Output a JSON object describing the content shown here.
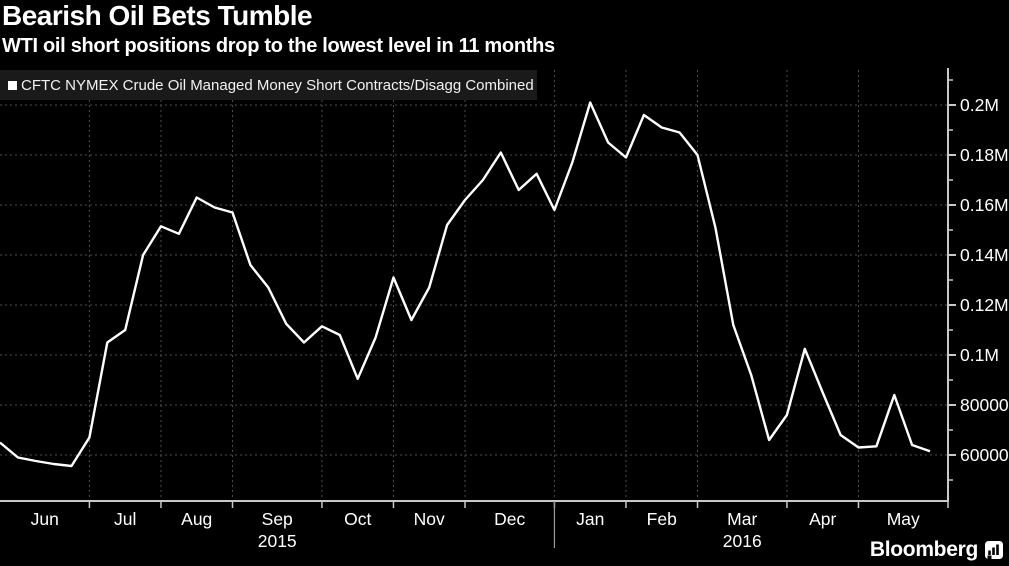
{
  "header": {
    "title": "Bearish Oil Bets Tumble",
    "subtitle": "WTI oil short positions drop to the lowest level in 11 months"
  },
  "legend": {
    "label": "CFTC NYMEX Crude Oil Managed Money Short Contracts/Disagg Combined",
    "swatch_color": "#ffffff"
  },
  "footer": {
    "brand": "Bloomberg"
  },
  "colors": {
    "background": "#000000",
    "line": "#ffffff",
    "axis": "#c8c8c8",
    "grid": "#4d4d4d",
    "legend_bg": "#1a1a1a",
    "text": "#ffffff"
  },
  "chart_data": {
    "type": "line",
    "title": "Bearish Oil Bets Tumble",
    "subtitle": "WTI oil short positions drop to the lowest level in 11 months",
    "grid": true,
    "legend_position": "top-left",
    "axis_side": "right",
    "x_unit": "weekly observations, Jun 2015 - mid May 2016",
    "ylim": [
      41600,
      214000
    ],
    "series": [
      {
        "name": "CFTC NYMEX Crude Oil Managed Money Short Contracts/Disagg Combined",
        "frequency": "weekly",
        "values": [
          65000,
          59000,
          57600,
          56400,
          55600,
          67000,
          105000,
          110000,
          140000,
          151500,
          148500,
          163000,
          159000,
          157000,
          136000,
          127000,
          112500,
          105000,
          111500,
          108000,
          90500,
          107000,
          131000,
          114000,
          127000,
          152000,
          162000,
          170000,
          181000,
          166000,
          172500,
          158000,
          177000,
          201000,
          185000,
          179000,
          196000,
          191000,
          189000,
          180000,
          151000,
          112000,
          92000,
          66000,
          76000,
          102500,
          85000,
          68000,
          63000,
          63500,
          84000,
          64000,
          61500
        ]
      }
    ],
    "x_months": [
      {
        "label": "Jun",
        "weeks": 5
      },
      {
        "label": "Jul",
        "weeks": 4
      },
      {
        "label": "Aug",
        "weeks": 4
      },
      {
        "label": "Sep",
        "weeks": 5,
        "year": "2015"
      },
      {
        "label": "Oct",
        "weeks": 4
      },
      {
        "label": "Nov",
        "weeks": 4
      },
      {
        "label": "Dec",
        "weeks": 5
      },
      {
        "label": "Jan",
        "weeks": 4,
        "new_year": true
      },
      {
        "label": "Feb",
        "weeks": 4
      },
      {
        "label": "Mar",
        "weeks": 5,
        "year": "2016"
      },
      {
        "label": "Apr",
        "weeks": 4
      },
      {
        "label": "May",
        "weeks": 5
      }
    ],
    "y_ticks": [
      {
        "label": "0.2M",
        "value": 200000
      },
      {
        "label": "0.18M",
        "value": 180000
      },
      {
        "label": "0.16M",
        "value": 160000
      },
      {
        "label": "0.14M",
        "value": 140000
      },
      {
        "label": "0.12M",
        "value": 120000
      },
      {
        "label": "0.1M",
        "value": 100000
      },
      {
        "label": "80000",
        "value": 80000
      },
      {
        "label": "60000",
        "value": 60000
      }
    ],
    "y_minor_step": 10000,
    "y_minor_range": [
      50000,
      210000
    ]
  }
}
